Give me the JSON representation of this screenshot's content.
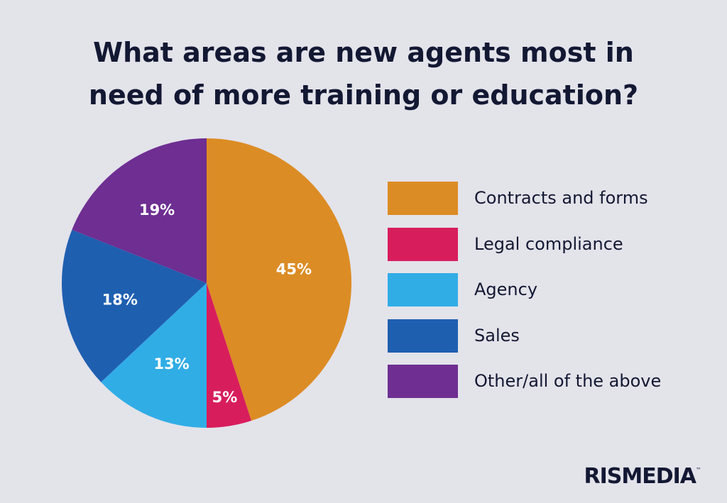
{
  "chart_data": {
    "type": "pie",
    "title_lines": [
      "What areas are new agents most in",
      "need of more training or education?"
    ],
    "slices": [
      {
        "label": "Contracts and forms",
        "value": 45,
        "value_label": "45%",
        "color": "#dc8c24"
      },
      {
        "label": "Legal compliance",
        "value": 5,
        "value_label": "5%",
        "color": "#d81d5c"
      },
      {
        "label": "Agency",
        "value": 13,
        "value_label": "13%",
        "color": "#31ade6"
      },
      {
        "label": "Sales",
        "value": 18,
        "value_label": "18%",
        "color": "#1f5fb0"
      },
      {
        "label": "Other/all of the above",
        "value": 19,
        "value_label": "19%",
        "color": "#6e2e92"
      }
    ],
    "legend_position": "right",
    "start": "top, clockwise"
  },
  "brand": {
    "name": "RISMEDIA",
    "mark": "™"
  }
}
